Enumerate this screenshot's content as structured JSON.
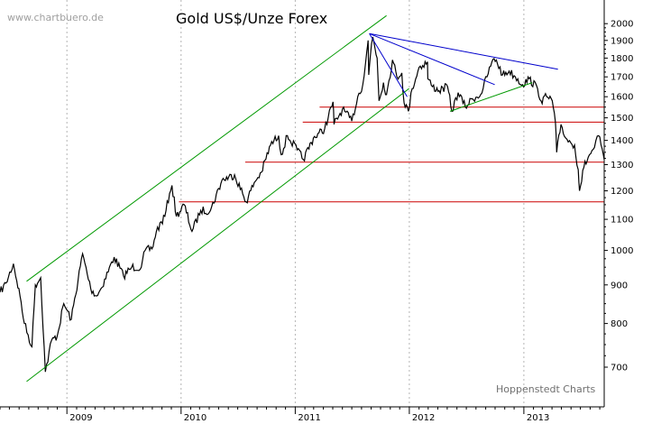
{
  "watermark": "www.chartbuero.de",
  "credit": "Hoppenstedt Charts",
  "chart_data": {
    "type": "line",
    "title": "Gold US$/Unze Forex",
    "xlabel": "",
    "ylabel": "",
    "y_scale": "log",
    "ylim": [
      620,
      2150
    ],
    "xlim": [
      "2008-06-01",
      "2013-09-15"
    ],
    "y_axis_position": "right",
    "grid": {
      "vertical": true,
      "horizontal": false,
      "style": "dotted"
    },
    "y_ticks": [
      700,
      800,
      900,
      1000,
      1100,
      1200,
      1300,
      1400,
      1500,
      1600,
      1700,
      1800,
      1900,
      2000
    ],
    "y_tick_labels": [
      "700",
      "800",
      "900",
      "1000",
      "1100",
      "1200",
      "1300",
      "1400",
      "1500",
      "1600",
      "1700",
      "1800",
      "1900",
      "2000"
    ],
    "x_ticks": [
      "2009-01-01",
      "2010-01-01",
      "2011-01-01",
      "2012-01-01",
      "2013-01-01"
    ],
    "x_tick_labels": [
      "2009",
      "2010",
      "2011",
      "2012",
      "2013"
    ],
    "colors": {
      "price": "#000000",
      "support": "#cc0000",
      "channel": "#009900",
      "trend": "#0000cc",
      "grid": "#b4b4b4"
    },
    "series": [
      {
        "values": [
          [
            "2008-06-01",
            880
          ],
          [
            "2008-06-20",
            905
          ],
          [
            "2008-07-14",
            960
          ],
          [
            "2008-08-04",
            870
          ],
          [
            "2008-08-18",
            800
          ],
          [
            "2008-09-11",
            745
          ],
          [
            "2008-09-22",
            900
          ],
          [
            "2008-10-09",
            920
          ],
          [
            "2008-10-24",
            690
          ],
          [
            "2008-11-13",
            760
          ],
          [
            "2008-12-01",
            770
          ],
          [
            "2008-12-22",
            850
          ],
          [
            "2009-01-15",
            810
          ],
          [
            "2009-02-20",
            990
          ],
          [
            "2009-03-18",
            890
          ],
          [
            "2009-04-06",
            870
          ],
          [
            "2009-04-20",
            890
          ],
          [
            "2009-06-01",
            980
          ],
          [
            "2009-07-01",
            925
          ],
          [
            "2009-07-27",
            950
          ],
          [
            "2009-08-27",
            950
          ],
          [
            "2009-09-08",
            1000
          ],
          [
            "2009-09-30",
            1005
          ],
          [
            "2009-10-14",
            1060
          ],
          [
            "2009-11-10",
            1110
          ],
          [
            "2009-11-25",
            1190
          ],
          [
            "2009-12-03",
            1220
          ],
          [
            "2009-12-17",
            1110
          ],
          [
            "2010-01-11",
            1150
          ],
          [
            "2010-02-05",
            1060
          ],
          [
            "2010-03-05",
            1130
          ],
          [
            "2010-04-05",
            1130
          ],
          [
            "2010-05-12",
            1240
          ],
          [
            "2010-06-21",
            1260
          ],
          [
            "2010-07-28",
            1160
          ],
          [
            "2010-08-23",
            1230
          ],
          [
            "2010-09-15",
            1270
          ],
          [
            "2010-10-14",
            1380
          ],
          [
            "2010-11-09",
            1420
          ],
          [
            "2010-11-17",
            1340
          ],
          [
            "2010-12-07",
            1420
          ],
          [
            "2011-01-07",
            1360
          ],
          [
            "2011-01-27",
            1320
          ],
          [
            "2011-02-28",
            1410
          ],
          [
            "2011-04-05",
            1450
          ],
          [
            "2011-05-02",
            1575
          ],
          [
            "2011-05-05",
            1470
          ],
          [
            "2011-06-01",
            1540
          ],
          [
            "2011-07-01",
            1485
          ],
          [
            "2011-07-20",
            1600
          ],
          [
            "2011-08-05",
            1660
          ],
          [
            "2011-08-18",
            1840
          ],
          [
            "2011-08-22",
            1900
          ],
          [
            "2011-08-24",
            1710
          ],
          [
            "2011-09-02",
            1880
          ],
          [
            "2011-09-06",
            1920
          ],
          [
            "2011-09-20",
            1800
          ],
          [
            "2011-09-26",
            1580
          ],
          [
            "2011-10-10",
            1670
          ],
          [
            "2011-10-20",
            1610
          ],
          [
            "2011-11-08",
            1790
          ],
          [
            "2011-11-22",
            1700
          ],
          [
            "2011-12-08",
            1720
          ],
          [
            "2011-12-15",
            1570
          ],
          [
            "2011-12-29",
            1530
          ],
          [
            "2012-01-10",
            1640
          ],
          [
            "2012-02-01",
            1750
          ],
          [
            "2012-02-28",
            1780
          ],
          [
            "2012-02-29",
            1690
          ],
          [
            "2012-03-15",
            1650
          ],
          [
            "2012-04-05",
            1630
          ],
          [
            "2012-05-02",
            1650
          ],
          [
            "2012-05-16",
            1530
          ],
          [
            "2012-06-05",
            1620
          ],
          [
            "2012-06-28",
            1550
          ],
          [
            "2012-07-20",
            1590
          ],
          [
            "2012-08-16",
            1610
          ],
          [
            "2012-09-05",
            1700
          ],
          [
            "2012-09-21",
            1780
          ],
          [
            "2012-10-05",
            1790
          ],
          [
            "2012-10-25",
            1710
          ],
          [
            "2012-11-15",
            1730
          ],
          [
            "2012-12-05",
            1700
          ],
          [
            "2012-12-28",
            1660
          ],
          [
            "2013-01-18",
            1690
          ],
          [
            "2013-02-14",
            1640
          ],
          [
            "2013-02-25",
            1580
          ],
          [
            "2013-03-15",
            1600
          ],
          [
            "2013-04-02",
            1580
          ],
          [
            "2013-04-12",
            1480
          ],
          [
            "2013-04-16",
            1350
          ],
          [
            "2013-04-30",
            1470
          ],
          [
            "2013-05-15",
            1410
          ],
          [
            "2013-05-31",
            1390
          ],
          [
            "2013-06-12",
            1380
          ],
          [
            "2013-06-24",
            1280
          ],
          [
            "2013-06-28",
            1200
          ],
          [
            "2013-07-12",
            1290
          ],
          [
            "2013-07-26",
            1330
          ],
          [
            "2013-08-15",
            1370
          ],
          [
            "2013-08-28",
            1420
          ],
          [
            "2013-09-05",
            1380
          ],
          [
            "2013-09-15",
            1320
          ]
        ]
      }
    ],
    "horizontal_lines": [
      {
        "y": 1550,
        "x_start": "2011-03-20",
        "x_end": "2013-09-15",
        "color": "#cc0000"
      },
      {
        "y": 1480,
        "x_start": "2011-01-25",
        "x_end": "2013-09-15",
        "color": "#cc0000"
      },
      {
        "y": 1310,
        "x_start": "2010-07-25",
        "x_end": "2013-09-15",
        "color": "#cc0000"
      },
      {
        "y": 1160,
        "x_start": "2009-12-25",
        "x_end": "2013-09-15",
        "color": "#cc0000"
      }
    ],
    "trend_lines": [
      {
        "color": "#009900",
        "from": [
          "2008-08-25",
          910
        ],
        "to": [
          "2011-10-20",
          2050
        ]
      },
      {
        "color": "#009900",
        "from": [
          "2008-08-25",
          670
        ],
        "to": [
          "2011-12-31",
          1640
        ]
      },
      {
        "color": "#009900",
        "from": [
          "2012-05-10",
          1530
        ],
        "to": [
          "2013-01-28",
          1670
        ]
      },
      {
        "color": "#0000cc",
        "from": [
          "2011-08-26",
          1940
        ],
        "to": [
          "2011-12-25",
          1600
        ]
      },
      {
        "color": "#0000cc",
        "from": [
          "2011-08-26",
          1940
        ],
        "to": [
          "2012-09-30",
          1660
        ]
      },
      {
        "color": "#0000cc",
        "from": [
          "2011-08-26",
          1940
        ],
        "to": [
          "2013-04-20",
          1740
        ]
      }
    ]
  }
}
